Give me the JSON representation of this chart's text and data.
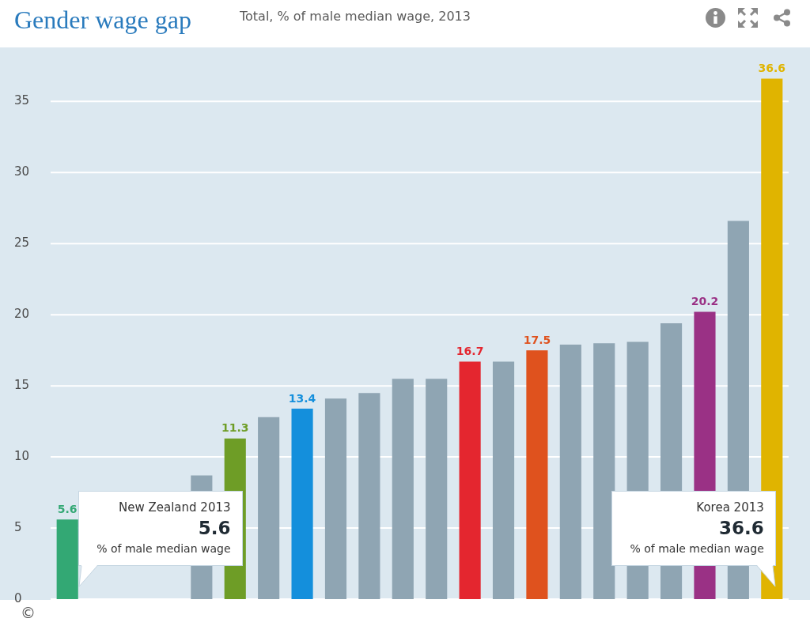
{
  "chart_data": {
    "type": "bar",
    "title": "Gender wage gap",
    "subtitle": "Total, % of male median wage, 2013",
    "categories": [
      null,
      null,
      null,
      null,
      null,
      null,
      null,
      null,
      null,
      null,
      null,
      null,
      null,
      null,
      null,
      null,
      null,
      null,
      null,
      null,
      null,
      null
    ],
    "values": [
      5.6,
      null,
      null,
      null,
      8.7,
      11.3,
      12.8,
      13.4,
      14.1,
      14.5,
      15.5,
      15.5,
      16.7,
      16.7,
      17.5,
      17.9,
      18.0,
      18.1,
      19.4,
      20.2,
      26.6,
      36.6
    ],
    "colors": [
      "#33a874",
      "#8fa5b3",
      "#8fa5b3",
      "#8fa5b3",
      "#8fa5b3",
      "#6e9d26",
      "#8fa5b3",
      "#148fdc",
      "#8fa5b3",
      "#8fa5b3",
      "#8fa5b3",
      "#8fa5b3",
      "#e4262f",
      "#8fa5b3",
      "#df521e",
      "#8fa5b3",
      "#8fa5b3",
      "#8fa5b3",
      "#8fa5b3",
      "#9a3185",
      "#8fa5b3",
      "#e0b400"
    ],
    "value_labels": [
      "5.6",
      null,
      null,
      null,
      null,
      "11.3",
      null,
      "13.4",
      null,
      null,
      null,
      null,
      "16.7",
      null,
      "17.5",
      null,
      null,
      null,
      null,
      "20.2",
      null,
      "36.6"
    ],
    "ylim": [
      0,
      38.8
    ],
    "yticks": [
      0,
      5,
      10,
      15,
      20,
      25,
      30,
      35
    ],
    "grid": "y",
    "tick_labels": "y",
    "annotations": [
      "New Zealand 2013\n5.6\n% of male median wage",
      "Korea 2013\n36.6\n% of male median wage",
      "©"
    ]
  }
}
